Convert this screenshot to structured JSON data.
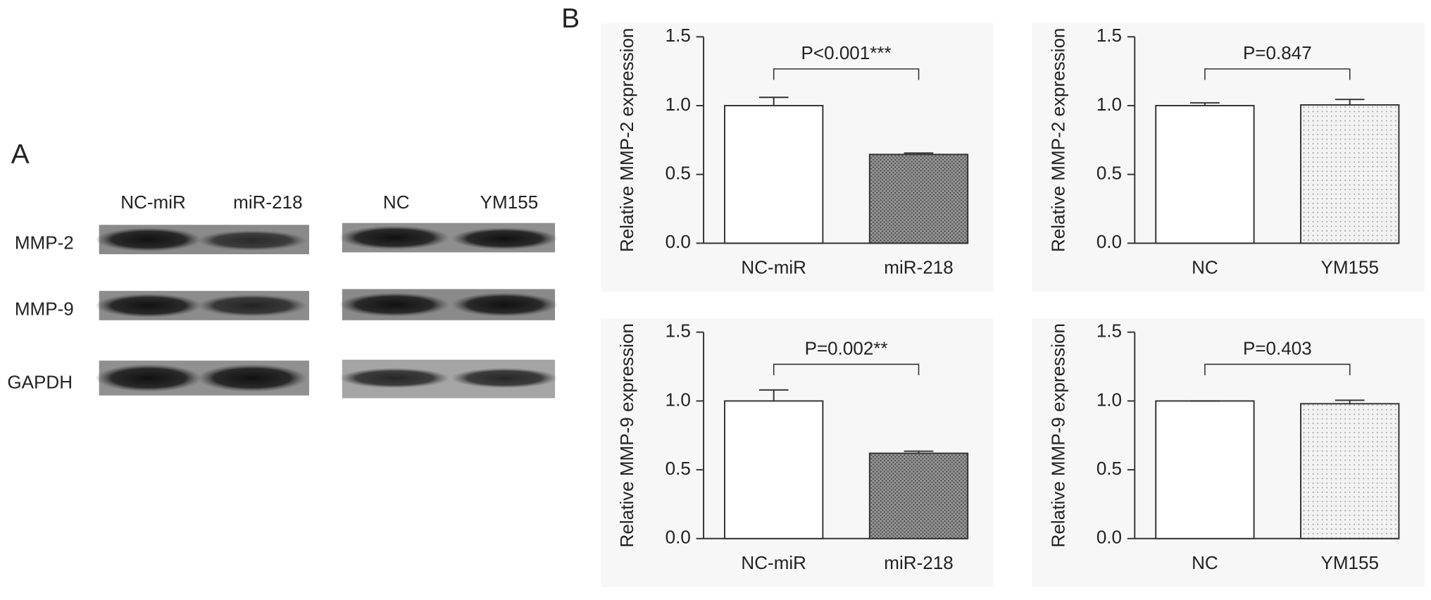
{
  "panel_a": {
    "letter": "A",
    "lanes": [
      "NC-miR",
      "miR-218",
      "NC",
      "YM155"
    ],
    "rows": [
      "MMP-2",
      "MMP-9",
      "GAPDH"
    ]
  },
  "panel_b": {
    "letter": "B"
  },
  "chart_data": [
    {
      "type": "bar",
      "ylabel": "Relative MMP-2 expression",
      "categories": [
        "NC-miR",
        "miR-218"
      ],
      "values": [
        1.0,
        0.645
      ],
      "errors": [
        0.06,
        0.01
      ],
      "bar_styles": [
        "plain",
        "crosshatch"
      ],
      "annotation": "P<0.001***",
      "ylim": [
        0,
        1.5
      ],
      "yticks": [
        {
          "value": 0,
          "label": "0.0"
        },
        0.5,
        {
          "value": 1,
          "label": "1.0"
        },
        1.5
      ]
    },
    {
      "type": "bar",
      "ylabel": "Relative MMP-2 expression",
      "categories": [
        "NC",
        "YM155"
      ],
      "values": [
        1.0,
        1.005
      ],
      "errors": [
        0.02,
        0.04
      ],
      "bar_styles": [
        "plain",
        "dots"
      ],
      "annotation": "P=0.847",
      "ylim": [
        0,
        1.5
      ],
      "yticks": [
        {
          "value": 0,
          "label": "0.0"
        },
        0.5,
        {
          "value": 1,
          "label": "1.0"
        },
        1.5
      ]
    },
    {
      "type": "bar",
      "ylabel": "Relative MMP-9 expression",
      "categories": [
        "NC-miR",
        "miR-218"
      ],
      "values": [
        1.0,
        0.62
      ],
      "errors": [
        0.08,
        0.015
      ],
      "bar_styles": [
        "plain",
        "crosshatch"
      ],
      "annotation": "P=0.002**",
      "ylim": [
        0,
        1.5
      ],
      "yticks": [
        {
          "value": 0,
          "label": "0.0"
        },
        0.5,
        {
          "value": 1,
          "label": "1.0"
        },
        1.5
      ]
    },
    {
      "type": "bar",
      "ylabel": "Relative MMP-9 expression",
      "categories": [
        "NC",
        "YM155"
      ],
      "values": [
        1.0,
        0.98
      ],
      "errors": [
        0.0,
        0.025
      ],
      "bar_styles": [
        "plain",
        "dots"
      ],
      "annotation": "P=0.403",
      "ylim": [
        0,
        1.5
      ],
      "yticks": [
        {
          "value": 0,
          "label": "0.0"
        },
        0.5,
        {
          "value": 1,
          "label": "1.0"
        },
        1.5
      ]
    }
  ]
}
